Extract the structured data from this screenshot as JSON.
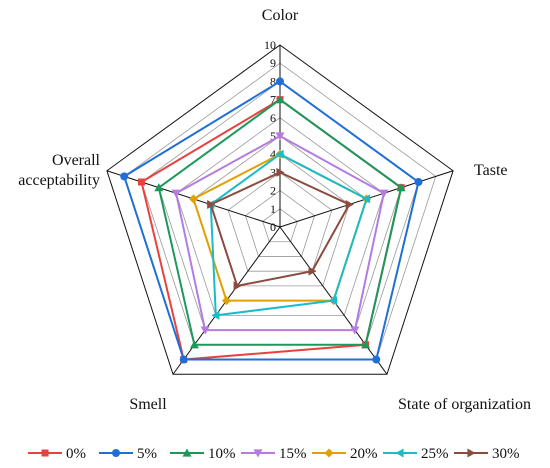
{
  "chart_data": {
    "type": "radar",
    "axes": [
      "Color",
      "Taste",
      "State of organization",
      "Smell",
      "Overall acceptability"
    ],
    "scale": {
      "min": 0,
      "max": 10,
      "step": 1
    },
    "ticks": [
      "0",
      "1",
      "2",
      "3",
      "4",
      "5",
      "6",
      "7",
      "8",
      "9",
      "10"
    ],
    "grid": true,
    "legend_position": "bottom",
    "series": [
      {
        "name": "0%",
        "color": "#e8423f",
        "marker": "square",
        "values": [
          7,
          7,
          8,
          9,
          8
        ]
      },
      {
        "name": "5%",
        "color": "#1f6fd6",
        "marker": "circle",
        "values": [
          8,
          8,
          9,
          9,
          9
        ]
      },
      {
        "name": "10%",
        "color": "#1a9a5a",
        "marker": "triangle-up",
        "values": [
          7,
          7,
          8,
          8,
          7
        ]
      },
      {
        "name": "15%",
        "color": "#b57be0",
        "marker": "triangle-down",
        "values": [
          5,
          6,
          7,
          7,
          6
        ]
      },
      {
        "name": "20%",
        "color": "#e0a000",
        "marker": "diamond",
        "values": [
          4,
          5,
          5,
          5,
          5
        ]
      },
      {
        "name": "25%",
        "color": "#1bbcc8",
        "marker": "triangle-left",
        "values": [
          4,
          5,
          5,
          6,
          4
        ]
      },
      {
        "name": "30%",
        "color": "#8b4b3f",
        "marker": "triangle-right",
        "values": [
          3,
          4,
          3,
          4,
          4
        ]
      }
    ]
  }
}
